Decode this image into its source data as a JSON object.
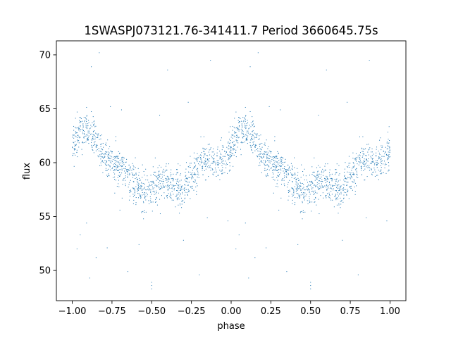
{
  "chart_data": {
    "type": "scatter",
    "title": "1SWASPJ073121.76-341411.7 Period 3660645.75s",
    "xlabel": "phase",
    "ylabel": "flux",
    "xlim": [
      -1.1,
      1.1
    ],
    "ylim": [
      47.2,
      71.3
    ],
    "xticks": [
      -1.0,
      -0.75,
      -0.5,
      -0.25,
      0.0,
      0.25,
      0.5,
      0.75,
      1.0
    ],
    "xtick_labels": [
      "−1.00",
      "−0.75",
      "−0.50",
      "−0.25",
      "0.00",
      "0.25",
      "0.50",
      "0.75",
      "1.00"
    ],
    "yticks": [
      50,
      55,
      60,
      65,
      70
    ],
    "ytick_labels": [
      "50",
      "55",
      "60",
      "65",
      "70"
    ],
    "grid": false,
    "marker_color": "#1f77b4",
    "light_curve": {
      "phase": [
        0.0,
        0.05,
        0.1,
        0.15,
        0.2,
        0.25,
        0.3,
        0.35,
        0.4,
        0.45,
        0.5,
        0.55,
        0.6,
        0.65,
        0.7,
        0.75,
        0.8,
        0.85,
        0.9,
        0.95,
        1.0
      ],
      "flux": [
        61.5,
        62.6,
        62.5,
        62.1,
        61.3,
        60.2,
        59.2,
        58.6,
        58.3,
        57.9,
        57.7,
        57.6,
        57.8,
        57.9,
        58.1,
        58.5,
        59.1,
        59.9,
        60.6,
        61.0,
        61.5
      ],
      "scatter_sigma": 0.9,
      "n_points_per_cycle": 1150
    },
    "outliers": [
      {
        "x": -0.5,
        "y": 48.3
      },
      {
        "x": -0.5,
        "y": 48.6
      },
      {
        "x": -0.5,
        "y": 48.9
      },
      {
        "x": 0.5,
        "y": 48.3
      },
      {
        "x": 0.5,
        "y": 48.6
      },
      {
        "x": 0.5,
        "y": 48.9
      },
      {
        "x": -0.83,
        "y": 70.2
      },
      {
        "x": 0.17,
        "y": 70.2
      },
      {
        "x": -0.88,
        "y": 68.9
      },
      {
        "x": 0.12,
        "y": 68.9
      },
      {
        "x": -0.4,
        "y": 68.6
      },
      {
        "x": 0.6,
        "y": 68.6
      },
      {
        "x": -0.13,
        "y": 69.5
      },
      {
        "x": 0.87,
        "y": 69.5
      },
      {
        "x": -0.85,
        "y": 51.2
      },
      {
        "x": 0.15,
        "y": 51.2
      },
      {
        "x": -0.65,
        "y": 49.9
      },
      {
        "x": 0.35,
        "y": 49.9
      },
      {
        "x": -0.2,
        "y": 49.6
      },
      {
        "x": 0.8,
        "y": 49.6
      },
      {
        "x": -0.95,
        "y": 53.3
      },
      {
        "x": 0.05,
        "y": 53.3
      },
      {
        "x": -0.78,
        "y": 52.1
      },
      {
        "x": 0.22,
        "y": 52.1
      },
      {
        "x": -0.91,
        "y": 54.4
      },
      {
        "x": 0.09,
        "y": 54.4
      },
      {
        "x": -0.58,
        "y": 52.4
      },
      {
        "x": 0.42,
        "y": 52.4
      },
      {
        "x": -0.3,
        "y": 52.8
      },
      {
        "x": 0.7,
        "y": 52.8
      },
      {
        "x": -0.02,
        "y": 54.6
      },
      {
        "x": 0.98,
        "y": 54.6
      },
      {
        "x": -0.76,
        "y": 65.2
      },
      {
        "x": 0.24,
        "y": 65.2
      },
      {
        "x": -0.69,
        "y": 64.9
      },
      {
        "x": 0.31,
        "y": 64.9
      },
      {
        "x": -0.27,
        "y": 65.6
      },
      {
        "x": 0.73,
        "y": 65.6
      },
      {
        "x": -0.45,
        "y": 64.4
      },
      {
        "x": 0.55,
        "y": 64.4
      },
      {
        "x": -0.7,
        "y": 55.6
      },
      {
        "x": 0.3,
        "y": 55.6
      },
      {
        "x": -0.15,
        "y": 54.9
      },
      {
        "x": 0.85,
        "y": 54.9
      },
      {
        "x": -0.97,
        "y": 52.0
      },
      {
        "x": 0.03,
        "y": 52.0
      },
      {
        "x": -0.89,
        "y": 49.3
      },
      {
        "x": 0.11,
        "y": 49.3
      }
    ]
  }
}
